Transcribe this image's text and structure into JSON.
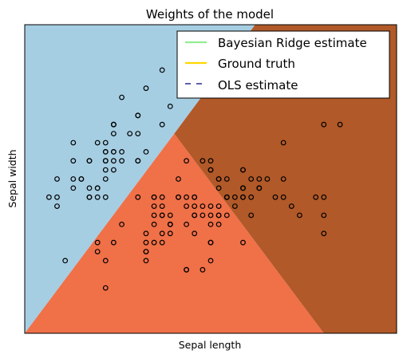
{
  "chart_data": {
    "type": "scatter",
    "title": "Weights of the model",
    "xlabel": "Sepal length",
    "ylabel": "Sepal width",
    "xlim": [
      4.0,
      8.6
    ],
    "ylim": [
      1.5,
      4.9
    ],
    "ticks_visible": false,
    "legend": {
      "placement": "top-right",
      "entries": [
        {
          "label": "Bayesian Ridge estimate",
          "color": "#90ee90",
          "style": "solid"
        },
        {
          "label": "Ground truth",
          "color": "#ffd700",
          "style": "solid"
        },
        {
          "label": "OLS estimate",
          "color": "#000080",
          "style": "dashed"
        }
      ]
    },
    "regions": [
      {
        "name": "region-a",
        "color": "#a6cee3",
        "polygon": [
          [
            4.0,
            1.5
          ],
          [
            5.85,
            3.7
          ],
          [
            6.85,
            4.9
          ],
          [
            4.0,
            4.9
          ]
        ]
      },
      {
        "name": "region-b",
        "color": "#f07048",
        "polygon": [
          [
            4.0,
            1.5
          ],
          [
            5.85,
            3.7
          ],
          [
            7.7,
            1.5
          ]
        ]
      },
      {
        "name": "region-c",
        "color": "#b15928",
        "polygon": [
          [
            5.85,
            3.7
          ],
          [
            6.85,
            4.9
          ],
          [
            8.6,
            4.9
          ],
          [
            8.6,
            1.5
          ],
          [
            7.7,
            1.5
          ]
        ]
      }
    ],
    "points": [
      [
        5.1,
        3.5
      ],
      [
        4.9,
        3.0
      ],
      [
        4.7,
        3.2
      ],
      [
        4.6,
        3.1
      ],
      [
        5.0,
        3.6
      ],
      [
        5.4,
        3.9
      ],
      [
        4.6,
        3.4
      ],
      [
        5.0,
        3.4
      ],
      [
        4.4,
        2.9
      ],
      [
        4.9,
        3.1
      ],
      [
        5.4,
        3.7
      ],
      [
        4.8,
        3.4
      ],
      [
        4.8,
        3.0
      ],
      [
        4.3,
        3.0
      ],
      [
        5.8,
        4.0
      ],
      [
        5.7,
        4.4
      ],
      [
        5.4,
        3.9
      ],
      [
        5.1,
        3.5
      ],
      [
        5.7,
        3.8
      ],
      [
        5.1,
        3.8
      ],
      [
        5.4,
        3.4
      ],
      [
        5.1,
        3.7
      ],
      [
        4.6,
        3.6
      ],
      [
        5.1,
        3.3
      ],
      [
        4.8,
        3.4
      ],
      [
        5.0,
        3.0
      ],
      [
        5.0,
        3.4
      ],
      [
        5.2,
        3.5
      ],
      [
        5.2,
        3.4
      ],
      [
        4.7,
        3.2
      ],
      [
        4.8,
        3.1
      ],
      [
        5.4,
        3.4
      ],
      [
        5.2,
        4.1
      ],
      [
        5.5,
        4.2
      ],
      [
        4.9,
        3.1
      ],
      [
        5.0,
        3.2
      ],
      [
        5.5,
        3.5
      ],
      [
        4.9,
        3.6
      ],
      [
        4.4,
        3.0
      ],
      [
        5.1,
        3.4
      ],
      [
        5.0,
        3.5
      ],
      [
        4.5,
        2.3
      ],
      [
        4.4,
        3.2
      ],
      [
        5.0,
        3.5
      ],
      [
        5.1,
        3.8
      ],
      [
        4.8,
        3.0
      ],
      [
        5.1,
        3.8
      ],
      [
        4.6,
        3.2
      ],
      [
        5.3,
        3.7
      ],
      [
        5.0,
        3.3
      ],
      [
        7.0,
        3.2
      ],
      [
        6.4,
        3.2
      ],
      [
        6.9,
        3.1
      ],
      [
        5.5,
        2.3
      ],
      [
        6.5,
        2.8
      ],
      [
        5.7,
        2.8
      ],
      [
        6.3,
        3.3
      ],
      [
        4.9,
        2.4
      ],
      [
        6.6,
        2.9
      ],
      [
        5.2,
        2.7
      ],
      [
        5.0,
        2.0
      ],
      [
        5.9,
        3.0
      ],
      [
        6.0,
        2.2
      ],
      [
        6.1,
        2.9
      ],
      [
        5.6,
        2.9
      ],
      [
        6.7,
        3.1
      ],
      [
        5.6,
        3.0
      ],
      [
        5.8,
        2.7
      ],
      [
        6.2,
        2.2
      ],
      [
        5.6,
        2.5
      ],
      [
        5.9,
        3.2
      ],
      [
        6.1,
        2.8
      ],
      [
        6.3,
        2.5
      ],
      [
        6.1,
        2.8
      ],
      [
        6.4,
        2.9
      ],
      [
        6.6,
        3.0
      ],
      [
        6.8,
        2.8
      ],
      [
        6.7,
        3.0
      ],
      [
        6.0,
        2.9
      ],
      [
        5.7,
        2.6
      ],
      [
        5.5,
        2.4
      ],
      [
        5.5,
        2.4
      ],
      [
        5.8,
        2.7
      ],
      [
        6.0,
        2.7
      ],
      [
        5.4,
        3.0
      ],
      [
        6.0,
        3.4
      ],
      [
        6.7,
        3.1
      ],
      [
        6.3,
        2.3
      ],
      [
        5.6,
        3.0
      ],
      [
        5.5,
        2.5
      ],
      [
        5.5,
        2.6
      ],
      [
        6.1,
        3.0
      ],
      [
        5.8,
        2.6
      ],
      [
        5.0,
        2.3
      ],
      [
        5.6,
        2.7
      ],
      [
        5.7,
        3.0
      ],
      [
        5.7,
        2.9
      ],
      [
        6.2,
        2.9
      ],
      [
        5.1,
        2.5
      ],
      [
        5.7,
        2.8
      ],
      [
        6.3,
        3.3
      ],
      [
        5.8,
        2.7
      ],
      [
        7.1,
        3.0
      ],
      [
        6.3,
        2.9
      ],
      [
        6.5,
        3.0
      ],
      [
        7.6,
        3.0
      ],
      [
        4.9,
        2.5
      ],
      [
        7.3,
        2.9
      ],
      [
        6.7,
        2.5
      ],
      [
        7.2,
        3.6
      ],
      [
        6.5,
        3.2
      ],
      [
        6.4,
        2.7
      ],
      [
        6.8,
        3.0
      ],
      [
        5.7,
        2.5
      ],
      [
        5.8,
        2.8
      ],
      [
        6.4,
        3.2
      ],
      [
        6.5,
        3.0
      ],
      [
        7.7,
        3.8
      ],
      [
        7.7,
        2.6
      ],
      [
        6.0,
        2.2
      ],
      [
        6.9,
        3.2
      ],
      [
        5.6,
        2.8
      ],
      [
        7.7,
        2.8
      ],
      [
        6.3,
        2.7
      ],
      [
        6.7,
        3.3
      ],
      [
        7.2,
        3.2
      ],
      [
        6.2,
        2.8
      ],
      [
        6.1,
        3.0
      ],
      [
        6.4,
        2.8
      ],
      [
        7.2,
        3.0
      ],
      [
        7.4,
        2.8
      ],
      [
        7.9,
        3.8
      ],
      [
        6.4,
        2.8
      ],
      [
        6.3,
        2.8
      ],
      [
        6.1,
        2.6
      ],
      [
        7.7,
        3.0
      ],
      [
        6.3,
        3.4
      ],
      [
        6.4,
        3.1
      ],
      [
        6.0,
        3.0
      ],
      [
        6.9,
        3.1
      ],
      [
        6.7,
        3.1
      ],
      [
        6.9,
        3.1
      ],
      [
        5.8,
        2.7
      ],
      [
        6.8,
        3.2
      ],
      [
        6.7,
        3.3
      ],
      [
        6.7,
        3.0
      ],
      [
        6.3,
        2.5
      ],
      [
        6.5,
        3.0
      ],
      [
        6.2,
        3.4
      ],
      [
        5.9,
        3.0
      ]
    ]
  }
}
